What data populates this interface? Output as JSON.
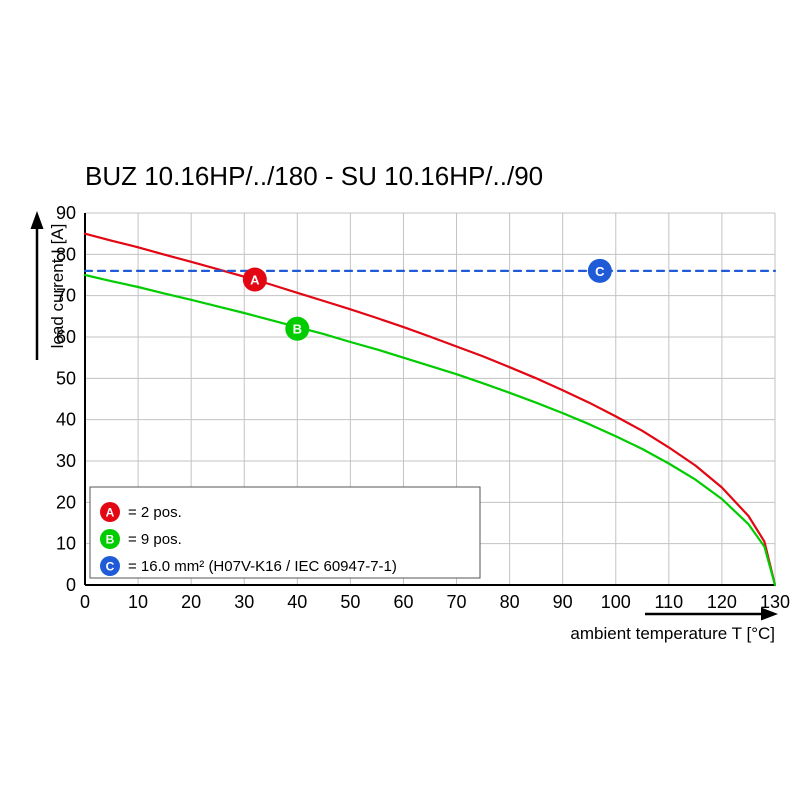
{
  "title": "BUZ 10.16HP/../180 - SU 10.16HP/../90",
  "chart_data": {
    "type": "line",
    "title": "BUZ 10.16HP/../180 - SU 10.16HP/../90",
    "xlabel": "ambient temperature T [°C]",
    "ylabel": "load current I [A]",
    "xlim": [
      0,
      130
    ],
    "ylim": [
      0,
      90
    ],
    "x_ticks": [
      0,
      10,
      20,
      30,
      40,
      50,
      60,
      70,
      80,
      90,
      100,
      110,
      120,
      130
    ],
    "y_ticks": [
      0,
      10,
      20,
      30,
      40,
      50,
      60,
      70,
      80,
      90
    ],
    "grid": true,
    "legend_position": "lower left",
    "grid_color": "#c3c3c3",
    "series": [
      {
        "name": "A",
        "label": "= 2 pos.",
        "color": "#e30613",
        "style": "solid",
        "marker": [
          32,
          73.9
        ],
        "points": [
          [
            0,
            85
          ],
          [
            5,
            83.3
          ],
          [
            10,
            81.7
          ],
          [
            15,
            79.9
          ],
          [
            20,
            78.2
          ],
          [
            25,
            76.4
          ],
          [
            30,
            74.6
          ],
          [
            35,
            72.7
          ],
          [
            40,
            70.7
          ],
          [
            45,
            68.7
          ],
          [
            50,
            66.7
          ],
          [
            55,
            64.6
          ],
          [
            60,
            62.4
          ],
          [
            65,
            60.1
          ],
          [
            70,
            57.7
          ],
          [
            75,
            55.3
          ],
          [
            80,
            52.7
          ],
          [
            85,
            50.0
          ],
          [
            90,
            47.1
          ],
          [
            95,
            44.1
          ],
          [
            100,
            40.8
          ],
          [
            105,
            37.3
          ],
          [
            110,
            33.3
          ],
          [
            115,
            28.9
          ],
          [
            120,
            23.6
          ],
          [
            125,
            16.7
          ],
          [
            128,
            10.5
          ],
          [
            130,
            0
          ]
        ]
      },
      {
        "name": "B",
        "label": "= 9 pos.",
        "color": "#00cc00",
        "style": "solid",
        "marker": [
          40,
          62.0
        ],
        "points": [
          [
            0,
            75
          ],
          [
            5,
            73.5
          ],
          [
            10,
            72.1
          ],
          [
            15,
            70.5
          ],
          [
            20,
            69.0
          ],
          [
            25,
            67.4
          ],
          [
            30,
            65.8
          ],
          [
            35,
            64.1
          ],
          [
            40,
            62.4
          ],
          [
            45,
            60.7
          ],
          [
            50,
            58.8
          ],
          [
            55,
            57.0
          ],
          [
            60,
            55.0
          ],
          [
            65,
            53.0
          ],
          [
            70,
            51.0
          ],
          [
            75,
            48.8
          ],
          [
            80,
            46.5
          ],
          [
            85,
            44.1
          ],
          [
            90,
            41.6
          ],
          [
            95,
            38.9
          ],
          [
            100,
            36.0
          ],
          [
            105,
            32.9
          ],
          [
            110,
            29.4
          ],
          [
            115,
            25.5
          ],
          [
            120,
            20.8
          ],
          [
            125,
            14.7
          ],
          [
            128,
            9.3
          ],
          [
            130,
            0
          ]
        ]
      },
      {
        "name": "C",
        "label": "= 16.0 mm² (H07V-K16 / IEC 60947-7-1)",
        "color": "#1f5bd6",
        "style": "dashed",
        "marker": [
          97,
          76
        ],
        "points": [
          [
            0,
            76
          ],
          [
            130,
            76
          ]
        ]
      }
    ]
  }
}
